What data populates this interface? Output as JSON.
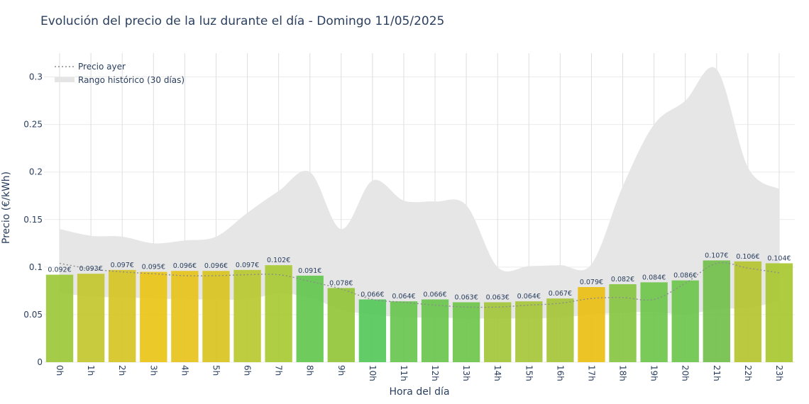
{
  "chart_data": {
    "type": "bar",
    "title": "Evolución del precio de la luz durante el día - Domingo 11/05/2025",
    "xlabel": "Hora del día",
    "ylabel": "Precio (€/kWh)",
    "ylim": [
      0,
      0.325
    ],
    "yticks": [
      0,
      0.05,
      0.1,
      0.15,
      0.2,
      0.25,
      0.3
    ],
    "ytick_labels": [
      "0",
      "0.05",
      "0.1",
      "0.15",
      "0.2",
      "0.25",
      "0.3"
    ],
    "categories": [
      "0h",
      "1h",
      "2h",
      "3h",
      "4h",
      "5h",
      "6h",
      "7h",
      "8h",
      "9h",
      "10h",
      "11h",
      "12h",
      "13h",
      "14h",
      "15h",
      "16h",
      "17h",
      "18h",
      "19h",
      "20h",
      "21h",
      "22h",
      "23h"
    ],
    "values": [
      0.092,
      0.093,
      0.097,
      0.095,
      0.096,
      0.096,
      0.097,
      0.102,
      0.091,
      0.078,
      0.066,
      0.064,
      0.066,
      0.063,
      0.063,
      0.064,
      0.067,
      0.079,
      0.082,
      0.084,
      0.086,
      0.107,
      0.106,
      0.104
    ],
    "value_labels": [
      "0.092€",
      "0.093€",
      "0.097€",
      "0.095€",
      "0.096€",
      "0.096€",
      "0.097€",
      "0.102€",
      "0.091€",
      "0.078€",
      "0.066€",
      "0.064€",
      "0.066€",
      "0.063€",
      "0.063€",
      "0.064€",
      "0.067€",
      "0.079€",
      "0.082€",
      "0.084€",
      "0.086€",
      "0.107€",
      "0.106€",
      "0.104€"
    ],
    "bar_colors": [
      "#9cc83a",
      "#c3c72c",
      "#d6c423",
      "#e9c417",
      "#e6c31a",
      "#d9c420",
      "#b8c92f",
      "#a8ca33",
      "#64c74f",
      "#93c63a",
      "#55c85a",
      "#68c64f",
      "#6ac64e",
      "#6ec54b",
      "#a3c539",
      "#a6c638",
      "#a5c637",
      "#ecbf12",
      "#87c541",
      "#6ec54b",
      "#6dc64d",
      "#72c04a",
      "#b4c42f",
      "#a8c72f"
    ],
    "series": [
      {
        "name": "Precio ayer",
        "style": "dotted",
        "color": "#8c8c8c",
        "values": [
          0.104,
          0.098,
          0.095,
          0.093,
          0.091,
          0.091,
          0.092,
          0.092,
          0.085,
          0.077,
          0.066,
          0.063,
          0.06,
          0.058,
          0.058,
          0.06,
          0.062,
          0.067,
          0.068,
          0.066,
          0.083,
          0.104,
          0.099,
          0.094
        ]
      },
      {
        "name": "Rango histórico (30 días)",
        "style": "band",
        "color": "#e5e5e5",
        "upper": [
          0.14,
          0.133,
          0.132,
          0.125,
          0.128,
          0.132,
          0.157,
          0.18,
          0.2,
          0.14,
          0.191,
          0.17,
          0.169,
          0.165,
          0.1,
          0.101,
          0.102,
          0.103,
          0.185,
          0.25,
          0.275,
          0.308,
          0.205,
          0.182
        ],
        "lower": [
          0.073,
          0.069,
          0.068,
          0.067,
          0.066,
          0.066,
          0.066,
          0.072,
          0.068,
          0.055,
          0.05,
          0.047,
          0.047,
          0.046,
          0.046,
          0.046,
          0.047,
          0.05,
          0.052,
          0.053,
          0.05,
          0.056,
          0.057,
          0.064
        ]
      }
    ],
    "legend_position": "top-left",
    "grid": true
  }
}
